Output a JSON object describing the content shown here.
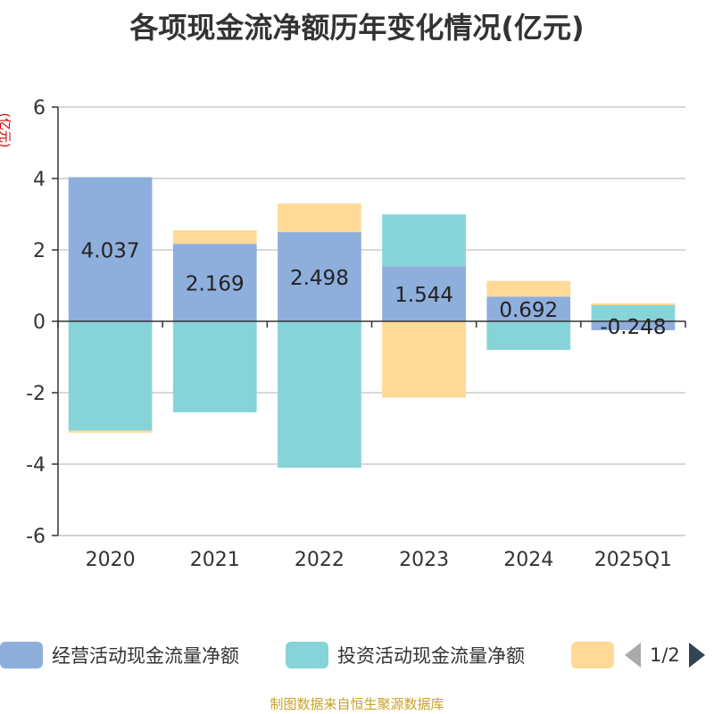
{
  "chart_data": {
    "type": "bar",
    "stacked": true,
    "title": "各项现金流净额历年变化情况(亿元)",
    "ylabel": "(亿元)",
    "ylim": [
      -6,
      6
    ],
    "yticks": [
      6,
      4,
      2,
      0,
      -2,
      -4,
      -6
    ],
    "grid": true,
    "legend_position": "bottom",
    "categories": [
      "2020",
      "2021",
      "2022",
      "2023",
      "2024",
      "2025Q1"
    ],
    "series": [
      {
        "name": "经营活动现金流量净额",
        "color": "#8eaedc",
        "values": [
          4.037,
          2.169,
          2.498,
          1.544,
          0.692,
          -0.248
        ],
        "labels": [
          "4.037",
          "2.169",
          "2.498",
          "1.544",
          "0.692",
          "-0.248"
        ]
      },
      {
        "name": "投资活动现金流量净额",
        "color": "#86d4d8",
        "values": [
          -3.06,
          -2.55,
          -4.1,
          1.45,
          -0.8,
          0.45
        ]
      },
      {
        "name": "",
        "color": "#ffd996",
        "values": [
          -0.06,
          0.38,
          0.8,
          -2.14,
          0.44,
          0.05
        ]
      }
    ]
  },
  "legend": {
    "page": "1/2"
  },
  "source_note": "制图数据来自恒生聚源数据库"
}
